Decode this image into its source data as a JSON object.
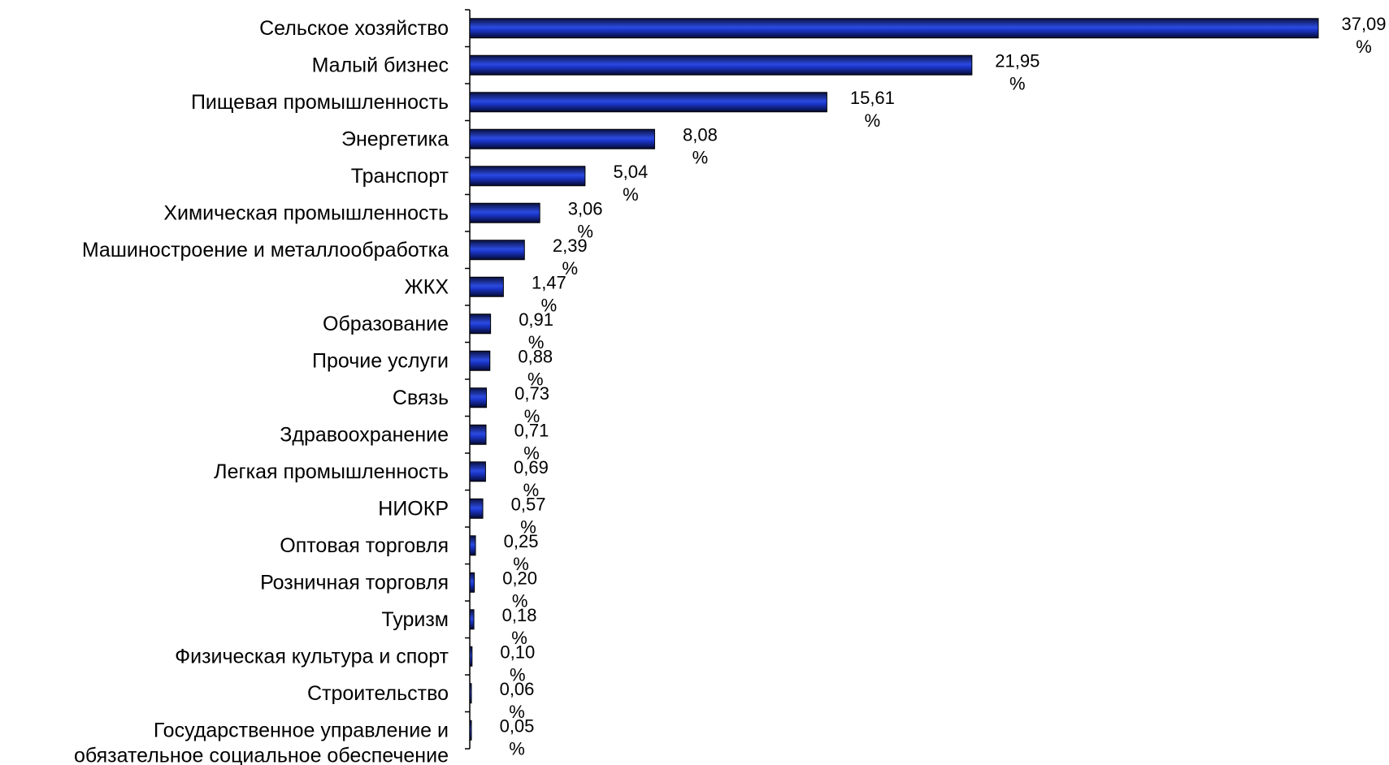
{
  "chart_data": {
    "type": "bar",
    "orientation": "horizontal",
    "title": "",
    "xlabel": "",
    "ylabel": "",
    "xlim": [
      0,
      37.09
    ],
    "grid": false,
    "legend": "none",
    "bar_color": "#1a35c8",
    "categories": [
      "Сельское хозяйство",
      "Малый бизнес",
      "Пищевая промышленность",
      "Энергетика",
      "Транспорт",
      "Химическая промышленность",
      "Машиностроение и металлообработка",
      "ЖКХ",
      "Образование",
      "Прочие услуги",
      "Связь",
      "Здравоохранение",
      "Легкая промышленность",
      "НИОКР",
      "Оптовая торговля",
      "Розничная торговля",
      "Туризм",
      "Физическая культура и спорт",
      "Строительство",
      "Государственное управление и обязательное социальное обеспечение"
    ],
    "values": [
      37.09,
      21.95,
      15.61,
      8.08,
      5.04,
      3.06,
      2.39,
      1.47,
      0.91,
      0.88,
      0.73,
      0.71,
      0.69,
      0.57,
      0.25,
      0.2,
      0.18,
      0.1,
      0.06,
      0.05
    ],
    "value_labels": [
      "37,09 %",
      "21,95 %",
      "15,61 %",
      "8,08 %",
      "5,04 %",
      "3,06 %",
      "2,39 %",
      "1,47 %",
      "0,91 %",
      "0,88 %",
      "0,73 %",
      "0,71 %",
      "0,69 %",
      "0,57 %",
      "0,25 %",
      "0,20 %",
      "0,18 %",
      "0,10 %",
      "0,06 %",
      "0,05 %"
    ]
  }
}
